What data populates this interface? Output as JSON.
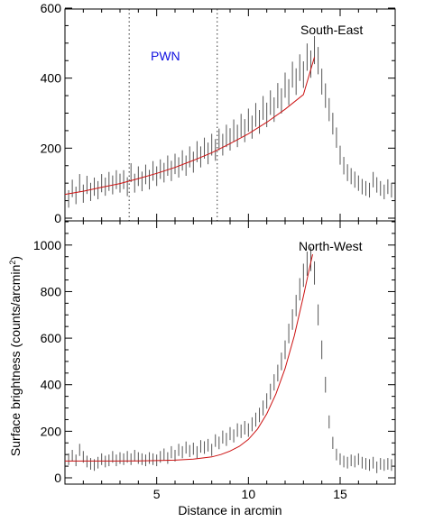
{
  "figure": {
    "ylabel": "Surface brightness (counts/arcmin",
    "ylabel_sup": "2",
    "ylabel_close": ")",
    "xlabel": "Distance in arcmin"
  },
  "chart_data": [
    {
      "type": "scatter",
      "title": "South-East",
      "annotation": "PWN",
      "annotation_color": "#1010e0",
      "xlim": [
        0,
        18
      ],
      "ylim": [
        0,
        600
      ],
      "x_ticks": [
        5,
        10,
        15
      ],
      "y_ticks": [
        0,
        200,
        400,
        600
      ],
      "vlines": [
        3.5,
        8.3
      ],
      "data_color": "#555555",
      "model_color": "#cc1111",
      "points": [
        [
          0.2,
          55,
          25
        ],
        [
          0.4,
          85,
          25
        ],
        [
          0.6,
          65,
          25
        ],
        [
          0.8,
          100,
          26
        ],
        [
          1.0,
          70,
          26
        ],
        [
          1.2,
          95,
          26
        ],
        [
          1.4,
          75,
          26
        ],
        [
          1.6,
          90,
          26
        ],
        [
          1.8,
          80,
          26
        ],
        [
          2.0,
          100,
          26
        ],
        [
          2.2,
          90,
          26
        ],
        [
          2.4,
          105,
          27
        ],
        [
          2.6,
          95,
          27
        ],
        [
          2.8,
          110,
          27
        ],
        [
          3.0,
          100,
          27
        ],
        [
          3.2,
          110,
          27
        ],
        [
          3.4,
          90,
          27
        ],
        [
          3.6,
          130,
          27
        ],
        [
          3.8,
          100,
          27
        ],
        [
          4.0,
          120,
          28
        ],
        [
          4.2,
          105,
          28
        ],
        [
          4.4,
          125,
          28
        ],
        [
          4.6,
          110,
          28
        ],
        [
          4.8,
          135,
          28
        ],
        [
          5.0,
          120,
          28
        ],
        [
          5.2,
          140,
          28
        ],
        [
          5.4,
          130,
          28
        ],
        [
          5.6,
          150,
          29
        ],
        [
          5.8,
          135,
          29
        ],
        [
          6.0,
          155,
          29
        ],
        [
          6.2,
          145,
          29
        ],
        [
          6.4,
          165,
          29
        ],
        [
          6.6,
          150,
          29
        ],
        [
          6.8,
          175,
          30
        ],
        [
          7.0,
          160,
          30
        ],
        [
          7.2,
          190,
          30
        ],
        [
          7.4,
          175,
          30
        ],
        [
          7.6,
          200,
          30
        ],
        [
          7.8,
          185,
          31
        ],
        [
          8.0,
          210,
          31
        ],
        [
          8.2,
          195,
          31
        ],
        [
          8.4,
          225,
          31
        ],
        [
          8.6,
          210,
          31
        ],
        [
          8.8,
          235,
          32
        ],
        [
          9.0,
          225,
          32
        ],
        [
          9.2,
          250,
          32
        ],
        [
          9.4,
          235,
          32
        ],
        [
          9.6,
          265,
          33
        ],
        [
          9.8,
          250,
          33
        ],
        [
          10.0,
          280,
          33
        ],
        [
          10.2,
          260,
          33
        ],
        [
          10.4,
          295,
          34
        ],
        [
          10.6,
          275,
          34
        ],
        [
          10.8,
          315,
          34
        ],
        [
          11.0,
          295,
          35
        ],
        [
          11.2,
          330,
          35
        ],
        [
          11.4,
          310,
          35
        ],
        [
          11.6,
          350,
          36
        ],
        [
          11.8,
          335,
          36
        ],
        [
          12.0,
          380,
          36
        ],
        [
          12.2,
          360,
          37
        ],
        [
          12.4,
          410,
          37
        ],
        [
          12.6,
          390,
          38
        ],
        [
          12.8,
          430,
          38
        ],
        [
          13.0,
          410,
          38
        ],
        [
          13.2,
          460,
          39
        ],
        [
          13.4,
          440,
          39
        ],
        [
          13.6,
          480,
          40
        ],
        [
          13.8,
          450,
          39
        ],
        [
          14.0,
          390,
          37
        ],
        [
          14.2,
          350,
          35
        ],
        [
          14.4,
          310,
          33
        ],
        [
          14.6,
          270,
          31
        ],
        [
          14.8,
          230,
          29
        ],
        [
          15.0,
          180,
          27
        ],
        [
          15.2,
          150,
          25
        ],
        [
          15.4,
          130,
          24
        ],
        [
          15.6,
          120,
          23
        ],
        [
          15.8,
          110,
          23
        ],
        [
          16.0,
          100,
          22
        ],
        [
          16.2,
          90,
          22
        ],
        [
          16.4,
          85,
          21
        ],
        [
          16.6,
          80,
          21
        ],
        [
          16.8,
          110,
          22
        ],
        [
          17.0,
          95,
          22
        ],
        [
          17.2,
          85,
          21
        ],
        [
          17.4,
          75,
          21
        ],
        [
          17.6,
          90,
          21
        ],
        [
          17.8,
          80,
          21
        ]
      ],
      "model": [
        [
          0,
          68
        ],
        [
          1,
          77
        ],
        [
          2,
          88
        ],
        [
          3,
          99
        ],
        [
          4,
          113
        ],
        [
          5,
          128
        ],
        [
          6,
          145
        ],
        [
          7,
          165
        ],
        [
          8,
          187
        ],
        [
          9,
          213
        ],
        [
          10,
          241
        ],
        [
          11,
          274
        ],
        [
          12,
          311
        ],
        [
          13,
          353
        ],
        [
          13.6,
          460
        ]
      ]
    },
    {
      "type": "scatter",
      "title": "North-West",
      "xlim": [
        0,
        18
      ],
      "ylim": [
        0,
        1100
      ],
      "x_ticks": [
        5,
        10,
        15
      ],
      "y_ticks": [
        0,
        200,
        400,
        600,
        800,
        1000
      ],
      "data_color": "#555555",
      "model_color": "#cc1111",
      "points": [
        [
          0.2,
          80,
          25
        ],
        [
          0.4,
          95,
          25
        ],
        [
          0.6,
          75,
          25
        ],
        [
          0.8,
          120,
          26
        ],
        [
          1.0,
          90,
          25
        ],
        [
          1.2,
          70,
          25
        ],
        [
          1.4,
          60,
          25
        ],
        [
          1.6,
          55,
          25
        ],
        [
          1.8,
          65,
          25
        ],
        [
          2.0,
          80,
          25
        ],
        [
          2.2,
          70,
          25
        ],
        [
          2.4,
          75,
          25
        ],
        [
          2.6,
          90,
          25
        ],
        [
          2.8,
          75,
          25
        ],
        [
          3.0,
          85,
          25
        ],
        [
          3.2,
          80,
          25
        ],
        [
          3.4,
          90,
          25
        ],
        [
          3.6,
          80,
          25
        ],
        [
          3.8,
          95,
          25
        ],
        [
          4.0,
          85,
          25
        ],
        [
          4.2,
          80,
          25
        ],
        [
          4.4,
          75,
          25
        ],
        [
          4.6,
          85,
          25
        ],
        [
          4.8,
          80,
          25
        ],
        [
          5.0,
          75,
          25
        ],
        [
          5.2,
          90,
          25
        ],
        [
          5.4,
          100,
          26
        ],
        [
          5.6,
          85,
          25
        ],
        [
          5.8,
          110,
          26
        ],
        [
          6.0,
          95,
          25
        ],
        [
          6.2,
          120,
          26
        ],
        [
          6.4,
          110,
          26
        ],
        [
          6.6,
          130,
          26
        ],
        [
          6.8,
          115,
          26
        ],
        [
          7.0,
          125,
          26
        ],
        [
          7.2,
          110,
          26
        ],
        [
          7.4,
          135,
          27
        ],
        [
          7.6,
          130,
          27
        ],
        [
          7.8,
          140,
          27
        ],
        [
          8.0,
          120,
          26
        ],
        [
          8.2,
          160,
          27
        ],
        [
          8.4,
          150,
          27
        ],
        [
          8.6,
          175,
          28
        ],
        [
          8.8,
          165,
          28
        ],
        [
          9.0,
          190,
          28
        ],
        [
          9.2,
          180,
          28
        ],
        [
          9.4,
          205,
          29
        ],
        [
          9.6,
          200,
          29
        ],
        [
          9.8,
          215,
          29
        ],
        [
          10.0,
          205,
          29
        ],
        [
          10.2,
          230,
          30
        ],
        [
          10.4,
          250,
          30
        ],
        [
          10.6,
          270,
          31
        ],
        [
          10.8,
          300,
          32
        ],
        [
          11.0,
          330,
          33
        ],
        [
          11.2,
          370,
          34
        ],
        [
          11.4,
          410,
          35
        ],
        [
          11.6,
          450,
          36
        ],
        [
          11.8,
          500,
          38
        ],
        [
          12.0,
          550,
          40
        ],
        [
          12.2,
          620,
          42
        ],
        [
          12.4,
          680,
          44
        ],
        [
          12.6,
          740,
          46
        ],
        [
          12.8,
          810,
          48
        ],
        [
          13.0,
          870,
          50
        ],
        [
          13.2,
          920,
          52
        ],
        [
          13.4,
          940,
          52
        ],
        [
          13.6,
          880,
          50
        ],
        [
          13.8,
          700,
          45
        ],
        [
          14.0,
          550,
          40
        ],
        [
          14.2,
          400,
          34
        ],
        [
          14.4,
          240,
          28
        ],
        [
          14.6,
          150,
          26
        ],
        [
          14.8,
          100,
          25
        ],
        [
          15.0,
          80,
          25
        ],
        [
          15.2,
          70,
          25
        ],
        [
          15.4,
          65,
          25
        ],
        [
          15.6,
          75,
          25
        ],
        [
          15.8,
          70,
          25
        ],
        [
          16.0,
          80,
          25
        ],
        [
          16.2,
          65,
          25
        ],
        [
          16.4,
          60,
          25
        ],
        [
          16.6,
          55,
          25
        ],
        [
          16.8,
          65,
          25
        ],
        [
          17.0,
          45,
          25
        ],
        [
          17.2,
          60,
          25
        ],
        [
          17.4,
          55,
          25
        ],
        [
          17.6,
          60,
          25
        ],
        [
          17.8,
          55,
          25
        ]
      ],
      "model": [
        [
          0,
          72
        ],
        [
          2,
          72
        ],
        [
          4,
          73
        ],
        [
          5,
          74
        ],
        [
          6,
          76
        ],
        [
          7,
          80
        ],
        [
          8,
          90
        ],
        [
          8.5,
          100
        ],
        [
          9,
          115
        ],
        [
          9.5,
          135
        ],
        [
          10,
          165
        ],
        [
          10.5,
          210
        ],
        [
          11,
          275
        ],
        [
          11.5,
          360
        ],
        [
          12,
          470
        ],
        [
          12.5,
          610
        ],
        [
          13,
          780
        ],
        [
          13.3,
          890
        ],
        [
          13.5,
          960
        ]
      ]
    }
  ]
}
